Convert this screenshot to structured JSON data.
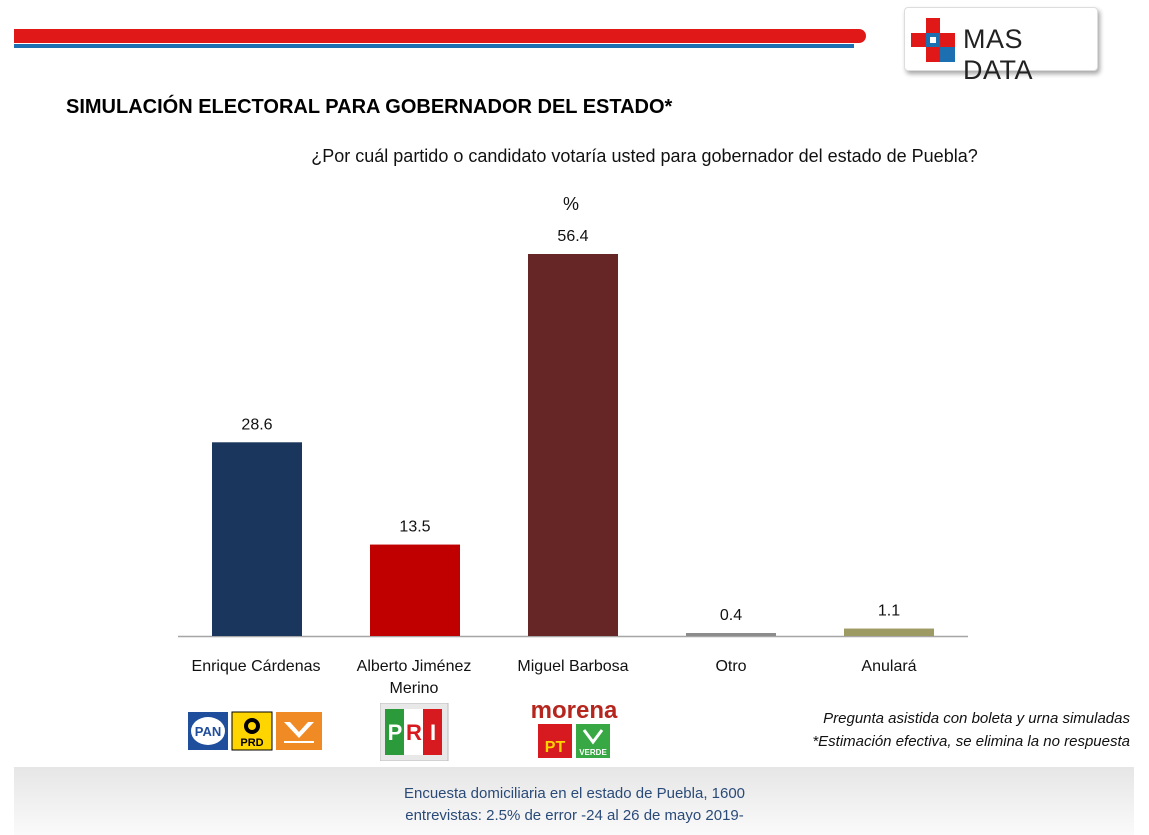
{
  "brand": {
    "name": "MAS DATA",
    "red": "#e01818",
    "blue": "#1c6fb0"
  },
  "title": "SIMULACIÓN ELECTORAL PARA GOBERNADOR DEL ESTADO*",
  "question": "¿Por cuál partido o candidato votaría usted para gobernador del estado de Puebla?",
  "unit_label": "%",
  "chart_data": {
    "type": "bar",
    "categories": [
      "Enrique Cárdenas",
      "Alberto Jiménez Merino",
      "Miguel Barbosa",
      "Otro",
      "Anulará"
    ],
    "values": [
      28.6,
      13.5,
      56.4,
      0.4,
      1.1
    ],
    "colors": [
      "#1b365d",
      "#c00000",
      "#662626",
      "#8c8c8c",
      "#9e9a64"
    ],
    "ylim": [
      0,
      60
    ],
    "grid": false
  },
  "labels": {
    "cat0": "Enrique Cárdenas",
    "cat1_line1": "Alberto Jiménez",
    "cat1_line2": "Merino",
    "cat2": "Miguel Barbosa",
    "cat3": "Otro",
    "cat4": "Anulará"
  },
  "party_logos": {
    "pan": "PAN",
    "prd": "PRD",
    "pri_p": "P",
    "pri_r": "R",
    "pri_i": "I",
    "morena": "morena",
    "pt": "PT",
    "verde": "VERDE"
  },
  "notes": {
    "line1": "Pregunta asistida con boleta y urna simuladas",
    "line2": "*Estimación efectiva, se elimina la no respuesta"
  },
  "footer": {
    "line1": "Encuesta domiciliaria en el estado de Puebla, 1600",
    "line2": "entrevistas: 2.5% de error -24 al 26 de mayo 2019-"
  }
}
